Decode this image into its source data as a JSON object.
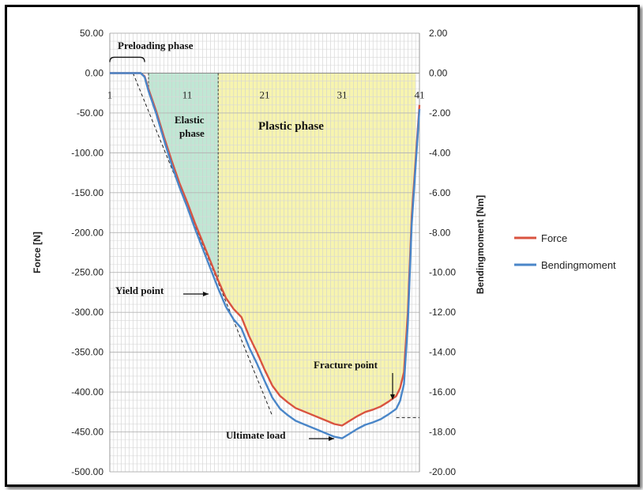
{
  "chart_data": {
    "type": "line",
    "y_left": {
      "label": "Force [N]",
      "min": -500,
      "max": 50,
      "step": 50,
      "ticks": [
        "50.00",
        "0.00",
        "-50.00",
        "-100.00",
        "-150.00",
        "-200.00",
        "-250.00",
        "-300.00",
        "-350.00",
        "-400.00",
        "-450.00",
        "-500.00"
      ]
    },
    "y_right": {
      "label": "Bendingmoment [Nm]",
      "min": -20,
      "max": 2,
      "step": 2,
      "ticks": [
        "2.00",
        "0.00",
        "-2.00",
        "-4.00",
        "-6.00",
        "-8.00",
        "-10.00",
        "-12.00",
        "-14.00",
        "-16.00",
        "-18.00",
        "-20.00"
      ]
    },
    "x_categories": [
      "1",
      "11",
      "21",
      "31",
      "41"
    ],
    "x_range": [
      1,
      41
    ],
    "grid": true,
    "legend_position": "right",
    "series": [
      {
        "name": "Force",
        "color": "#d9533f",
        "axis": "left",
        "x": [
          1,
          3,
          5,
          5.5,
          6,
          7,
          8,
          9,
          10,
          11,
          12,
          13,
          14,
          15,
          16,
          17,
          18,
          19,
          20,
          21,
          22,
          23,
          24,
          25,
          26,
          27,
          28,
          29,
          30,
          31,
          32,
          33,
          34,
          35,
          36,
          37,
          38,
          38.5,
          39,
          39.5,
          40,
          41
        ],
        "y": [
          0,
          0,
          0,
          -4,
          -20,
          -48,
          -80,
          -110,
          -138,
          -162,
          -188,
          -212,
          -236,
          -260,
          -282,
          -296,
          -306,
          -330,
          -350,
          -372,
          -392,
          -405,
          -413,
          -420,
          -424,
          -428,
          -432,
          -436,
          -440,
          -442,
          -436,
          -430,
          -425,
          -422,
          -418,
          -412,
          -405,
          -395,
          -375,
          -300,
          -180,
          -40
        ]
      },
      {
        "name": "Bendingmoment",
        "color": "#4a86c8",
        "axis": "right",
        "x": [
          1,
          3,
          5,
          5.5,
          6,
          7,
          8,
          9,
          10,
          11,
          12,
          13,
          14,
          15,
          16,
          17,
          18,
          19,
          20,
          21,
          22,
          23,
          24,
          25,
          26,
          27,
          28,
          29,
          30,
          31,
          32,
          33,
          34,
          35,
          36,
          37,
          38,
          38.5,
          39,
          39.5,
          40,
          41
        ],
        "y": [
          0,
          0,
          0,
          -0.2,
          -0.9,
          -2.04,
          -3.36,
          -4.6,
          -5.72,
          -6.72,
          -7.8,
          -8.8,
          -9.8,
          -10.8,
          -11.72,
          -12.36,
          -12.8,
          -13.76,
          -14.56,
          -15.44,
          -16.28,
          -16.84,
          -17.16,
          -17.44,
          -17.6,
          -17.76,
          -17.92,
          -18.08,
          -18.24,
          -18.32,
          -18.08,
          -17.84,
          -17.64,
          -17.52,
          -17.36,
          -17.12,
          -16.84,
          -16.44,
          -15.6,
          -12.6,
          -7.6,
          -1.8
        ]
      }
    ],
    "regions": [
      {
        "label": "Elastic phase",
        "label_lines": [
          "Elastic",
          "phase"
        ],
        "x_start": 6,
        "x_end": 15,
        "color": "#b9e4cf"
      },
      {
        "label": "Plastic phase",
        "x_start": 15,
        "x_end": 40.5,
        "color": "#f6f3a6"
      }
    ],
    "annotations": {
      "preloading": "Preloading phase",
      "yield": "Yield point",
      "ultimate": "Ultimate load",
      "fracture": "Fracture point"
    },
    "tangent_line": {
      "x": [
        4,
        22
      ],
      "y": [
        0,
        -430
      ]
    },
    "fracture_line": {
      "x": [
        38,
        41
      ],
      "y": [
        -432,
        -432
      ]
    }
  }
}
